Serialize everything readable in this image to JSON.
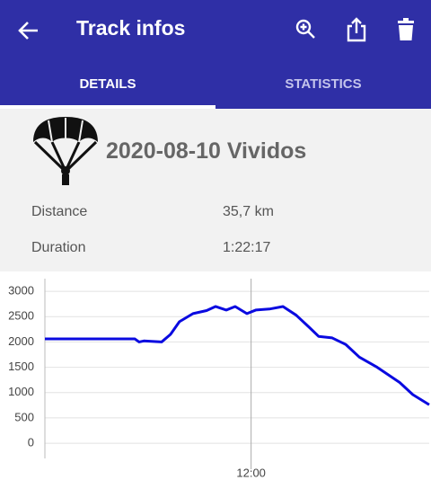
{
  "app_bar": {
    "title": "Track infos"
  },
  "tabs": [
    "DETAILS",
    "STATISTICS"
  ],
  "track": {
    "name": "2020-08-10 Vividos",
    "rows": [
      {
        "label": "Distance",
        "value": "35,7 km"
      },
      {
        "label": "Duration",
        "value": "1:22:17"
      }
    ]
  },
  "chart_data": {
    "type": "line",
    "x": [
      676,
      695.2,
      696.1,
      697.1,
      700.9,
      702.8,
      704.7,
      707.6,
      710.5,
      712.4,
      714.7,
      716.6,
      719.1,
      721.0,
      723.9,
      726.8,
      729.6,
      732.5,
      734.4,
      737.3,
      740.2,
      743.1,
      746.9,
      751.7,
      754.5,
      758
    ],
    "series": [
      {
        "color": "#0a0ae0",
        "values": [
          2060,
          2060,
          2000,
          2020,
          2000,
          2150,
          2400,
          2560,
          2620,
          2700,
          2630,
          2700,
          2560,
          2630,
          2650,
          2700,
          2530,
          2280,
          2110,
          2080,
          1950,
          1700,
          1500,
          1200,
          960,
          760
        ]
      }
    ],
    "xlim": [
      676,
      758
    ],
    "xticks": [
      {
        "value": 720,
        "label": "12:00"
      }
    ],
    "ylim": [
      -300,
      3250
    ],
    "yticks": [
      0,
      500,
      1000,
      1500,
      2000,
      2500,
      3000
    ],
    "grid": true
  }
}
